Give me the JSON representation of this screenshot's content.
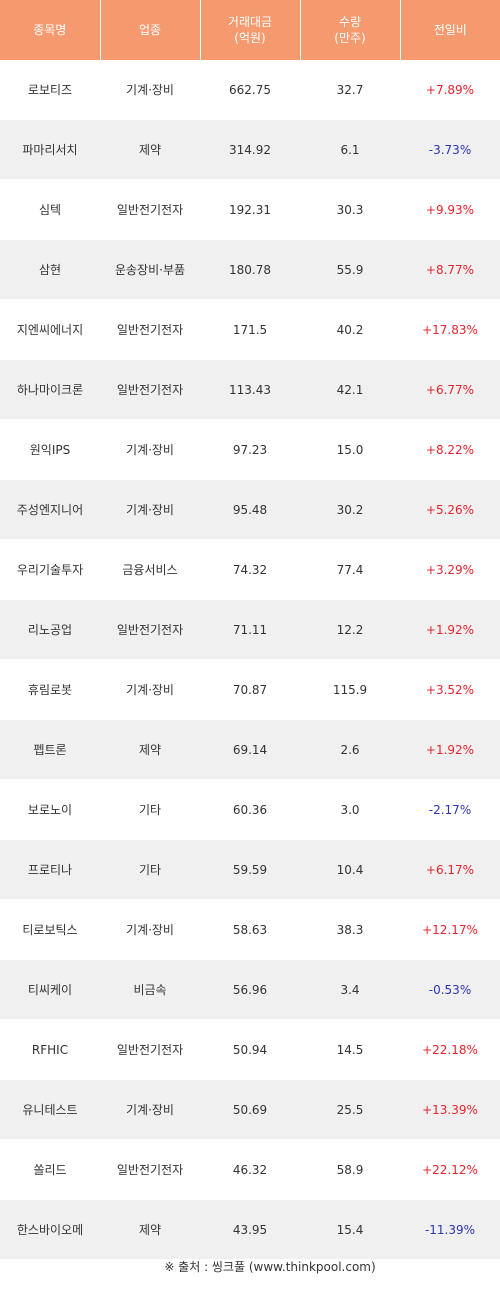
{
  "header": {
    "name": "종목명",
    "sector": "업종",
    "amount_line1": "거래대금",
    "amount_line2": "(억원)",
    "volume_line1": "수량",
    "volume_line2": "(만주)",
    "change": "전일비"
  },
  "rows": [
    {
      "name": "로보티즈",
      "sector": "기계·장비",
      "amount": "662.75",
      "volume": "32.7",
      "change": "+7.89%",
      "dir": "up"
    },
    {
      "name": "파마리서치",
      "sector": "제약",
      "amount": "314.92",
      "volume": "6.1",
      "change": "-3.73%",
      "dir": "down"
    },
    {
      "name": "심텍",
      "sector": "일반전기전자",
      "amount": "192.31",
      "volume": "30.3",
      "change": "+9.93%",
      "dir": "up"
    },
    {
      "name": "삼현",
      "sector": "운송장비·부품",
      "amount": "180.78",
      "volume": "55.9",
      "change": "+8.77%",
      "dir": "up"
    },
    {
      "name": "지엔씨에너지",
      "sector": "일반전기전자",
      "amount": "171.5",
      "volume": "40.2",
      "change": "+17.83%",
      "dir": "up"
    },
    {
      "name": "하나마이크론",
      "sector": "일반전기전자",
      "amount": "113.43",
      "volume": "42.1",
      "change": "+6.77%",
      "dir": "up"
    },
    {
      "name": "원익IPS",
      "sector": "기계·장비",
      "amount": "97.23",
      "volume": "15.0",
      "change": "+8.22%",
      "dir": "up"
    },
    {
      "name": "주성엔지니어",
      "sector": "기계·장비",
      "amount": "95.48",
      "volume": "30.2",
      "change": "+5.26%",
      "dir": "up"
    },
    {
      "name": "우리기술투자",
      "sector": "금융서비스",
      "amount": "74.32",
      "volume": "77.4",
      "change": "+3.29%",
      "dir": "up"
    },
    {
      "name": "리노공업",
      "sector": "일반전기전자",
      "amount": "71.11",
      "volume": "12.2",
      "change": "+1.92%",
      "dir": "up"
    },
    {
      "name": "휴림로봇",
      "sector": "기계·장비",
      "amount": "70.87",
      "volume": "115.9",
      "change": "+3.52%",
      "dir": "up"
    },
    {
      "name": "펩트론",
      "sector": "제약",
      "amount": "69.14",
      "volume": "2.6",
      "change": "+1.92%",
      "dir": "up"
    },
    {
      "name": "보로노이",
      "sector": "기타",
      "amount": "60.36",
      "volume": "3.0",
      "change": "-2.17%",
      "dir": "down"
    },
    {
      "name": "프로티나",
      "sector": "기타",
      "amount": "59.59",
      "volume": "10.4",
      "change": "+6.17%",
      "dir": "up"
    },
    {
      "name": "티로보틱스",
      "sector": "기계·장비",
      "amount": "58.63",
      "volume": "38.3",
      "change": "+12.17%",
      "dir": "up"
    },
    {
      "name": "티씨케이",
      "sector": "비금속",
      "amount": "56.96",
      "volume": "3.4",
      "change": "-0.53%",
      "dir": "down"
    },
    {
      "name": "RFHIC",
      "sector": "일반전기전자",
      "amount": "50.94",
      "volume": "14.5",
      "change": "+22.18%",
      "dir": "up"
    },
    {
      "name": "유니테스트",
      "sector": "기계·장비",
      "amount": "50.69",
      "volume": "25.5",
      "change": "+13.39%",
      "dir": "up"
    },
    {
      "name": "쏠리드",
      "sector": "일반전기전자",
      "amount": "46.32",
      "volume": "58.9",
      "change": "+22.12%",
      "dir": "up"
    },
    {
      "name": "한스바이오메",
      "sector": "제약",
      "amount": "43.95",
      "volume": "15.4",
      "change": "-11.39%",
      "dir": "down"
    }
  ],
  "source": "※ 출처 : 씽크풀 (www.thinkpool.com)",
  "colors": {
    "header_bg": "#f49a6e",
    "up": "#e8242c",
    "down": "#2b34b5",
    "row_alt": "#f0f0f0"
  }
}
